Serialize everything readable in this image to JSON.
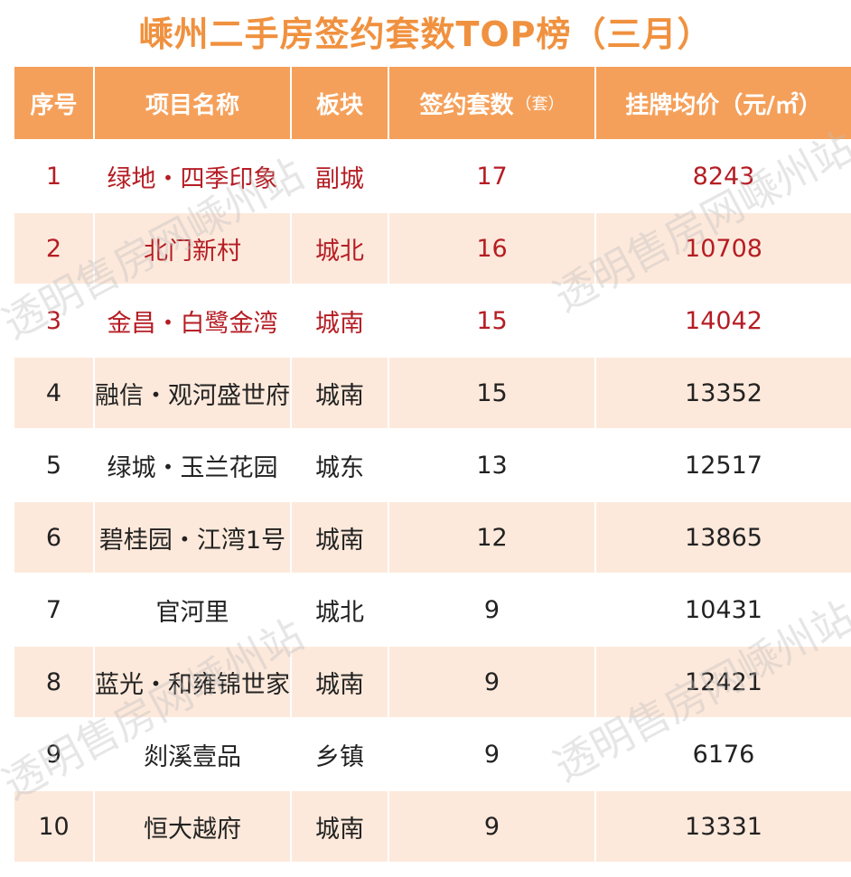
{
  "title": "嵊州二手房签约套数TOP榜（三月）",
  "table": {
    "headers": {
      "index": "序号",
      "project": "项目名称",
      "district": "板块",
      "count": "签约套数",
      "count_unit": "（套）",
      "price": "挂牌均价（元/㎡）"
    },
    "rows": [
      {
        "index": "1",
        "project": "绿地・四季印象",
        "district": "副城",
        "count": "17",
        "price": "8243"
      },
      {
        "index": "2",
        "project": "北门新村",
        "district": "城北",
        "count": "16",
        "price": "10708"
      },
      {
        "index": "3",
        "project": "金昌・白鹭金湾",
        "district": "城南",
        "count": "15",
        "price": "14042"
      },
      {
        "index": "4",
        "project": "融信・观河盛世府",
        "district": "城南",
        "count": "15",
        "price": "13352"
      },
      {
        "index": "5",
        "project": "绿城・玉兰花园",
        "district": "城东",
        "count": "13",
        "price": "12517"
      },
      {
        "index": "6",
        "project": "碧桂园・江湾1号",
        "district": "城南",
        "count": "12",
        "price": "13865"
      },
      {
        "index": "7",
        "project": "官河里",
        "district": "城北",
        "count": "9",
        "price": "10431"
      },
      {
        "index": "8",
        "project": "蓝光・和雍锦世家",
        "district": "城南",
        "count": "9",
        "price": "12421"
      },
      {
        "index": "9",
        "project": "剡溪壹品",
        "district": "乡镇",
        "count": "9",
        "price": "6176"
      },
      {
        "index": "10",
        "project": "恒大越府",
        "district": "城南",
        "count": "9",
        "price": "13331"
      }
    ]
  },
  "watermark": "透明售房网嵊州站",
  "colors": {
    "title": "#f0913f",
    "header_bg": "#f5a05a",
    "stripe_bg": "#fde9db",
    "highlight_text": "#b51d24"
  }
}
